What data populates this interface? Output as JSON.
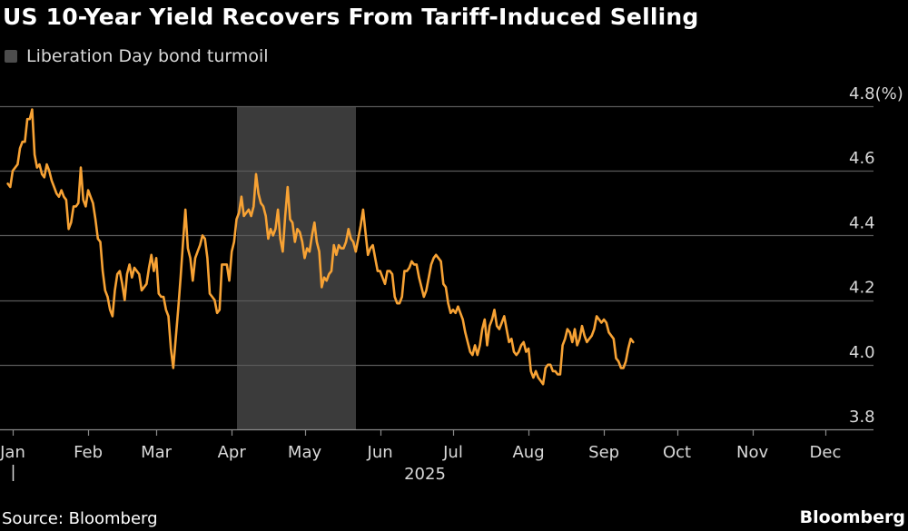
{
  "header": {
    "title": "US 10-Year Yield Recovers From Tariff-Induced Selling",
    "legend_label": "Liberation Day bond turmoil"
  },
  "footer": {
    "source": "Source: Bloomberg",
    "brand": "Bloomberg"
  },
  "colors": {
    "line": "#f7a234",
    "shade": "#3b3b3b",
    "grid": "#5a5a5a",
    "background": "#000000"
  },
  "chart_data": {
    "type": "line",
    "title": "US 10-Year Yield Recovers From Tariff-Induced Selling",
    "xlabel": "2025",
    "ylabel": "(%)",
    "x_domain": [
      0,
      337
    ],
    "ylim": [
      3.8,
      4.8
    ],
    "y_ticks": [
      {
        "value": 3.8,
        "label": "3.8"
      },
      {
        "value": 4.0,
        "label": "4.0"
      },
      {
        "value": 4.2,
        "label": "4.2"
      },
      {
        "value": 4.4,
        "label": "4.4"
      },
      {
        "value": 4.6,
        "label": "4.6"
      },
      {
        "value": 4.8,
        "label": "4.8(%)"
      }
    ],
    "x_ticks": [
      {
        "day": 0,
        "label": "Jan"
      },
      {
        "day": 31,
        "label": "Feb"
      },
      {
        "day": 59,
        "label": "Mar"
      },
      {
        "day": 90,
        "label": "Apr"
      },
      {
        "day": 120,
        "label": "May"
      },
      {
        "day": 151,
        "label": "Jun"
      },
      {
        "day": 181,
        "label": "Jul"
      },
      {
        "day": 212,
        "label": "Aug"
      },
      {
        "day": 243,
        "label": "Sep"
      },
      {
        "day": 273,
        "label": "Oct"
      },
      {
        "day": 304,
        "label": "Nov"
      },
      {
        "day": 334,
        "label": "Dec"
      }
    ],
    "x_group_label": "2025",
    "shaded_regions": [
      {
        "start_day": 92,
        "end_day": 141,
        "label": "Liberation Day bond turmoil"
      }
    ],
    "series": [
      {
        "name": "US 10-Year Yield",
        "points": [
          [
            -2,
            4.56
          ],
          [
            -1,
            4.55
          ],
          [
            0,
            4.6
          ],
          [
            1,
            4.61
          ],
          [
            2,
            4.62
          ],
          [
            3,
            4.67
          ],
          [
            4,
            4.69
          ],
          [
            5,
            4.69
          ],
          [
            6,
            4.76
          ],
          [
            7,
            4.76
          ],
          [
            8,
            4.79
          ],
          [
            9,
            4.65
          ],
          [
            10,
            4.61
          ],
          [
            11,
            4.62
          ],
          [
            12,
            4.59
          ],
          [
            13,
            4.58
          ],
          [
            14,
            4.62
          ],
          [
            15,
            4.6
          ],
          [
            16,
            4.57
          ],
          [
            17,
            4.55
          ],
          [
            18,
            4.53
          ],
          [
            19,
            4.52
          ],
          [
            20,
            4.54
          ],
          [
            21,
            4.52
          ],
          [
            22,
            4.51
          ],
          [
            23,
            4.42
          ],
          [
            24,
            4.44
          ],
          [
            25,
            4.49
          ],
          [
            26,
            4.49
          ],
          [
            27,
            4.5
          ],
          [
            28,
            4.61
          ],
          [
            29,
            4.51
          ],
          [
            30,
            4.49
          ],
          [
            31,
            4.54
          ],
          [
            32,
            4.52
          ],
          [
            33,
            4.5
          ],
          [
            34,
            4.45
          ],
          [
            35,
            4.39
          ],
          [
            36,
            4.38
          ],
          [
            37,
            4.29
          ],
          [
            38,
            4.23
          ],
          [
            39,
            4.21
          ],
          [
            40,
            4.17
          ],
          [
            41,
            4.15
          ],
          [
            42,
            4.23
          ],
          [
            43,
            4.28
          ],
          [
            44,
            4.29
          ],
          [
            45,
            4.25
          ],
          [
            46,
            4.2
          ],
          [
            47,
            4.28
          ],
          [
            48,
            4.31
          ],
          [
            49,
            4.27
          ],
          [
            50,
            4.3
          ],
          [
            51,
            4.29
          ],
          [
            52,
            4.28
          ],
          [
            53,
            4.23
          ],
          [
            54,
            4.24
          ],
          [
            55,
            4.25
          ],
          [
            56,
            4.3
          ],
          [
            57,
            4.34
          ],
          [
            58,
            4.29
          ],
          [
            59,
            4.33
          ],
          [
            60,
            4.22
          ],
          [
            61,
            4.21
          ],
          [
            62,
            4.21
          ],
          [
            63,
            4.17
          ],
          [
            64,
            4.15
          ],
          [
            65,
            4.05
          ],
          [
            66,
            3.99
          ],
          [
            67,
            4.08
          ],
          [
            68,
            4.17
          ],
          [
            69,
            4.27
          ],
          [
            70,
            4.38
          ],
          [
            71,
            4.48
          ],
          [
            72,
            4.36
          ],
          [
            73,
            4.33
          ],
          [
            74,
            4.26
          ],
          [
            75,
            4.33
          ],
          [
            76,
            4.35
          ],
          [
            77,
            4.37
          ],
          [
            78,
            4.4
          ],
          [
            79,
            4.39
          ],
          [
            80,
            4.33
          ],
          [
            81,
            4.22
          ],
          [
            82,
            4.21
          ],
          [
            83,
            4.2
          ],
          [
            84,
            4.16
          ],
          [
            85,
            4.17
          ],
          [
            86,
            4.31
          ],
          [
            87,
            4.31
          ],
          [
            88,
            4.31
          ],
          [
            89,
            4.26
          ],
          [
            90,
            4.35
          ],
          [
            91,
            4.38
          ],
          [
            92,
            4.45
          ],
          [
            93,
            4.47
          ],
          [
            94,
            4.52
          ],
          [
            95,
            4.46
          ],
          [
            96,
            4.47
          ],
          [
            97,
            4.48
          ],
          [
            98,
            4.46
          ],
          [
            99,
            4.49
          ],
          [
            100,
            4.59
          ],
          [
            101,
            4.53
          ],
          [
            102,
            4.5
          ],
          [
            103,
            4.49
          ],
          [
            104,
            4.46
          ],
          [
            105,
            4.39
          ],
          [
            106,
            4.42
          ],
          [
            107,
            4.4
          ],
          [
            108,
            4.42
          ],
          [
            109,
            4.48
          ],
          [
            110,
            4.39
          ],
          [
            111,
            4.35
          ],
          [
            112,
            4.46
          ],
          [
            113,
            4.55
          ],
          [
            114,
            4.45
          ],
          [
            115,
            4.44
          ],
          [
            116,
            4.38
          ],
          [
            117,
            4.42
          ],
          [
            118,
            4.41
          ],
          [
            119,
            4.38
          ],
          [
            120,
            4.33
          ],
          [
            121,
            4.36
          ],
          [
            122,
            4.35
          ],
          [
            123,
            4.4
          ],
          [
            124,
            4.44
          ],
          [
            125,
            4.38
          ],
          [
            126,
            4.35
          ],
          [
            127,
            4.24
          ],
          [
            128,
            4.27
          ],
          [
            129,
            4.26
          ],
          [
            130,
            4.28
          ],
          [
            131,
            4.29
          ],
          [
            132,
            4.37
          ],
          [
            133,
            4.34
          ],
          [
            134,
            4.37
          ],
          [
            135,
            4.36
          ],
          [
            136,
            4.36
          ],
          [
            137,
            4.38
          ],
          [
            138,
            4.42
          ],
          [
            139,
            4.39
          ],
          [
            140,
            4.38
          ],
          [
            141,
            4.35
          ],
          [
            142,
            4.39
          ],
          [
            143,
            4.43
          ],
          [
            144,
            4.48
          ],
          [
            145,
            4.41
          ],
          [
            146,
            4.34
          ],
          [
            147,
            4.36
          ],
          [
            148,
            4.37
          ],
          [
            149,
            4.33
          ],
          [
            150,
            4.29
          ],
          [
            151,
            4.29
          ],
          [
            152,
            4.27
          ],
          [
            153,
            4.25
          ],
          [
            154,
            4.29
          ],
          [
            155,
            4.29
          ],
          [
            156,
            4.28
          ],
          [
            157,
            4.21
          ],
          [
            158,
            4.19
          ],
          [
            159,
            4.19
          ],
          [
            160,
            4.21
          ],
          [
            161,
            4.29
          ],
          [
            162,
            4.29
          ],
          [
            163,
            4.3
          ],
          [
            164,
            4.32
          ],
          [
            165,
            4.31
          ],
          [
            166,
            4.31
          ],
          [
            167,
            4.27
          ],
          [
            168,
            4.24
          ],
          [
            169,
            4.21
          ],
          [
            170,
            4.23
          ],
          [
            171,
            4.27
          ],
          [
            172,
            4.31
          ],
          [
            173,
            4.33
          ],
          [
            174,
            4.34
          ],
          [
            175,
            4.33
          ],
          [
            176,
            4.32
          ],
          [
            177,
            4.25
          ],
          [
            178,
            4.24
          ],
          [
            179,
            4.19
          ],
          [
            180,
            4.16
          ],
          [
            181,
            4.17
          ],
          [
            182,
            4.16
          ],
          [
            183,
            4.18
          ],
          [
            184,
            4.16
          ],
          [
            185,
            4.14
          ],
          [
            186,
            4.1
          ],
          [
            187,
            4.07
          ],
          [
            188,
            4.04
          ],
          [
            189,
            4.03
          ],
          [
            190,
            4.06
          ],
          [
            191,
            4.03
          ],
          [
            192,
            4.06
          ],
          [
            193,
            4.11
          ],
          [
            194,
            4.14
          ],
          [
            195,
            4.06
          ],
          [
            196,
            4.12
          ],
          [
            197,
            4.14
          ],
          [
            198,
            4.17
          ],
          [
            199,
            4.12
          ],
          [
            200,
            4.11
          ],
          [
            201,
            4.13
          ],
          [
            202,
            4.15
          ],
          [
            203,
            4.11
          ],
          [
            204,
            4.07
          ],
          [
            205,
            4.08
          ],
          [
            206,
            4.04
          ],
          [
            207,
            4.03
          ],
          [
            208,
            4.04
          ],
          [
            209,
            4.06
          ],
          [
            210,
            4.07
          ],
          [
            211,
            4.04
          ],
          [
            212,
            4.05
          ],
          [
            213,
            3.98
          ],
          [
            214,
            3.96
          ],
          [
            215,
            3.98
          ],
          [
            216,
            3.96
          ],
          [
            217,
            3.95
          ],
          [
            218,
            3.94
          ],
          [
            219,
            3.99
          ],
          [
            220,
            4.0
          ],
          [
            221,
            4.0
          ],
          [
            222,
            3.98
          ],
          [
            223,
            3.98
          ],
          [
            224,
            3.97
          ],
          [
            225,
            3.97
          ],
          [
            226,
            4.06
          ],
          [
            227,
            4.08
          ],
          [
            228,
            4.11
          ],
          [
            229,
            4.1
          ],
          [
            230,
            4.07
          ],
          [
            231,
            4.11
          ],
          [
            232,
            4.06
          ],
          [
            233,
            4.08
          ],
          [
            234,
            4.12
          ],
          [
            235,
            4.09
          ],
          [
            236,
            4.07
          ],
          [
            237,
            4.08
          ],
          [
            238,
            4.09
          ],
          [
            239,
            4.11
          ],
          [
            240,
            4.15
          ],
          [
            241,
            4.14
          ],
          [
            242,
            4.13
          ],
          [
            243,
            4.14
          ],
          [
            244,
            4.13
          ],
          [
            245,
            4.1
          ],
          [
            246,
            4.09
          ],
          [
            247,
            4.08
          ],
          [
            248,
            4.02
          ],
          [
            249,
            4.01
          ],
          [
            250,
            3.99
          ],
          [
            251,
            3.99
          ],
          [
            252,
            4.01
          ],
          [
            253,
            4.05
          ],
          [
            254,
            4.08
          ],
          [
            255,
            4.07
          ]
        ]
      }
    ]
  }
}
